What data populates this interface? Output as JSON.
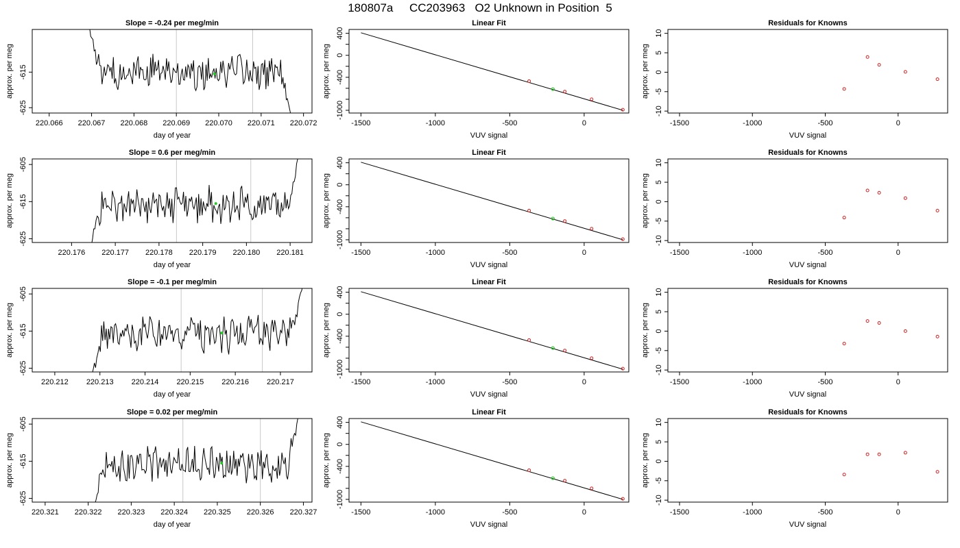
{
  "figure": {
    "title": "180807a     CC203963   O2 Unknown in Position  5"
  },
  "chart_data": [
    {
      "type": "line",
      "title": "Slope =  -0.24  per meg/min",
      "xlabel": "day of year",
      "ylabel": "approx. per meg",
      "xlim": [
        220.0656,
        220.0722
      ],
      "ylim": [
        -626.5,
        -603
      ],
      "xticks": [
        "220.066",
        "220.067",
        "220.068",
        "220.069",
        "220.070",
        "220.071",
        "220.072"
      ],
      "xtick_values": [
        220.066,
        220.067,
        220.068,
        220.069,
        220.07,
        220.071,
        220.072
      ],
      "yticks": [
        "-615",
        "-625"
      ],
      "ytick_values": [
        -615,
        -625
      ],
      "vlines": [
        220.069,
        220.0708
      ],
      "trace": {
        "start": 220.0669,
        "end": 220.0717,
        "level": -615,
        "rise_to": -600,
        "fall_to": -627
      },
      "marker": {
        "x": 220.0699,
        "y": -615.5
      }
    },
    {
      "type": "scatter",
      "title": "Linear Fit",
      "xlabel": "VUV signal",
      "ylabel": "approx. per meg",
      "xlim": [
        -1580,
        300
      ],
      "ylim": [
        -1050,
        470
      ],
      "xticks": [
        "-1500",
        "-1000",
        "-500",
        "0"
      ],
      "xtick_values": [
        -1500,
        -1000,
        -500,
        0
      ],
      "yticks": [
        "400",
        "0",
        "-400",
        "-1000"
      ],
      "ytick_values": [
        400,
        0,
        -400,
        -1000
      ],
      "fit_line": {
        "x": [
          -1500,
          260
        ],
        "y": [
          410,
          -1000
        ]
      },
      "knowns": {
        "x": [
          -370,
          -130,
          50,
          260
        ],
        "y": [
          -470,
          -660,
          -800,
          -990
        ]
      },
      "unknown": {
        "x": [
          -210
        ],
        "y": [
          -615
        ]
      }
    },
    {
      "type": "scatter",
      "title": "Residuals for Knowns",
      "xlabel": "VUV signal",
      "ylabel": "approx. per meg",
      "xlim": [
        -1580,
        340
      ],
      "ylim": [
        -10.5,
        11
      ],
      "xticks": [
        "-1500",
        "-1000",
        "-500",
        "0"
      ],
      "xtick_values": [
        -1500,
        -1000,
        -500,
        0
      ],
      "yticks": [
        "10",
        "5",
        "0",
        "-5",
        "-10"
      ],
      "ytick_values": [
        10,
        5,
        0,
        -5,
        -10
      ],
      "points": {
        "x": [
          -370,
          -210,
          -130,
          50,
          270
        ],
        "y": [
          -4.3,
          3.9,
          1.9,
          0.1,
          -1.8
        ]
      }
    },
    {
      "type": "line",
      "title": "Slope =  0.6  per meg/min",
      "xlabel": "day of year",
      "ylabel": "approx. per meg",
      "xlim": [
        220.1751,
        220.1815
      ],
      "ylim": [
        -626,
        -603.5
      ],
      "xticks": [
        "220.176",
        "220.177",
        "220.178",
        "220.179",
        "220.180",
        "220.181"
      ],
      "xtick_values": [
        220.176,
        220.177,
        220.178,
        220.179,
        220.18,
        220.181
      ],
      "yticks": [
        "-605",
        "-615",
        "-625"
      ],
      "ytick_values": [
        -605,
        -615,
        -625
      ],
      "vlines": [
        220.1784,
        220.1801
      ],
      "trace": {
        "start": 220.1764,
        "end": 220.1812,
        "level": -616,
        "rise_to": -602,
        "fall_to": -628
      },
      "marker": {
        "x": 220.1793,
        "y": -615.5
      }
    },
    {
      "type": "scatter",
      "title": "Linear Fit",
      "xlabel": "VUV signal",
      "ylabel": "approx. per meg",
      "xlim": [
        -1580,
        300
      ],
      "ylim": [
        -1050,
        470
      ],
      "xticks": [
        "-1500",
        "-1000",
        "-500",
        "0"
      ],
      "xtick_values": [
        -1500,
        -1000,
        -500,
        0
      ],
      "yticks": [
        "400",
        "0",
        "-400",
        "-1000"
      ],
      "ytick_values": [
        400,
        0,
        -400,
        -1000
      ],
      "fit_line": {
        "x": [
          -1500,
          260
        ],
        "y": [
          410,
          -1000
        ]
      },
      "knowns": {
        "x": [
          -370,
          -130,
          50,
          260
        ],
        "y": [
          -470,
          -660,
          -800,
          -990
        ]
      },
      "unknown": {
        "x": [
          -210
        ],
        "y": [
          -615
        ]
      }
    },
    {
      "type": "scatter",
      "title": "Residuals for Knowns",
      "xlabel": "VUV signal",
      "ylabel": "approx. per meg",
      "xlim": [
        -1580,
        340
      ],
      "ylim": [
        -10.5,
        11
      ],
      "xticks": [
        "-1500",
        "-1000",
        "-500",
        "0"
      ],
      "xtick_values": [
        -1500,
        -1000,
        -500,
        0
      ],
      "yticks": [
        "10",
        "5",
        "0",
        "-5",
        "-10"
      ],
      "ytick_values": [
        10,
        5,
        0,
        -5,
        -10
      ],
      "points": {
        "x": [
          -370,
          -210,
          -130,
          50,
          270
        ],
        "y": [
          -4.1,
          2.9,
          2.3,
          0.9,
          -2.3
        ]
      }
    },
    {
      "type": "line",
      "title": "Slope =  -0.1  per meg/min",
      "xlabel": "day of year",
      "ylabel": "approx. per meg",
      "xlim": [
        220.2115,
        220.2177
      ],
      "ylim": [
        -626,
        -603.5
      ],
      "xticks": [
        "220.212",
        "220.213",
        "220.214",
        "220.215",
        "220.216",
        "220.217"
      ],
      "xtick_values": [
        220.212,
        220.213,
        220.214,
        220.215,
        220.216,
        220.217
      ],
      "yticks": [
        "-605",
        "-615",
        "-625"
      ],
      "ytick_values": [
        -605,
        -615,
        -625
      ],
      "vlines": [
        220.2148,
        220.2166
      ],
      "trace": {
        "start": 220.2128,
        "end": 220.2175,
        "level": -616,
        "rise_to": -602,
        "fall_to": -628
      },
      "marker": {
        "x": 220.2157,
        "y": -615.5
      }
    },
    {
      "type": "scatter",
      "title": "Linear Fit",
      "xlabel": "VUV signal",
      "ylabel": "approx. per meg",
      "xlim": [
        -1580,
        300
      ],
      "ylim": [
        -1050,
        470
      ],
      "xticks": [
        "-1500",
        "-1000",
        "-500",
        "0"
      ],
      "xtick_values": [
        -1500,
        -1000,
        -500,
        0
      ],
      "yticks": [
        "400",
        "0",
        "-400",
        "-1000"
      ],
      "ytick_values": [
        400,
        0,
        -400,
        -1000
      ],
      "fit_line": {
        "x": [
          -1500,
          260
        ],
        "y": [
          410,
          -1000
        ]
      },
      "knowns": {
        "x": [
          -370,
          -130,
          50,
          260
        ],
        "y": [
          -470,
          -660,
          -800,
          -990
        ]
      },
      "unknown": {
        "x": [
          -210
        ],
        "y": [
          -615
        ]
      }
    },
    {
      "type": "scatter",
      "title": "Residuals for Knowns",
      "xlabel": "VUV signal",
      "ylabel": "approx. per meg",
      "xlim": [
        -1580,
        340
      ],
      "ylim": [
        -10.5,
        11
      ],
      "xticks": [
        "-1500",
        "-1000",
        "-500",
        "0"
      ],
      "xtick_values": [
        -1500,
        -1000,
        -500,
        0
      ],
      "yticks": [
        "10",
        "5",
        "0",
        "-5",
        "-10"
      ],
      "points": {
        "x": [
          -370,
          -210,
          -130,
          50,
          270
        ],
        "y": [
          -3.2,
          2.6,
          2.1,
          0.0,
          -1.4
        ]
      },
      "ytick_values": [
        10,
        5,
        0,
        -5,
        -10
      ]
    },
    {
      "type": "line",
      "title": "Slope =  0.02  per meg/min",
      "xlabel": "day of year",
      "ylabel": "approx. per meg",
      "xlim": [
        220.3207,
        220.3272
      ],
      "ylim": [
        -626,
        -603.5
      ],
      "xticks": [
        "220.321",
        "220.322",
        "220.323",
        "220.324",
        "220.325",
        "220.326",
        "220.327"
      ],
      "xtick_values": [
        220.321,
        220.322,
        220.323,
        220.324,
        220.325,
        220.326,
        220.327
      ],
      "yticks": [
        "-605",
        "-615",
        "-625"
      ],
      "ytick_values": [
        -605,
        -615,
        -625
      ],
      "vlines": [
        220.3242,
        220.326
      ],
      "trace": {
        "start": 220.3221,
        "end": 220.3269,
        "level": -616,
        "rise_to": -602,
        "fall_to": -628
      },
      "marker": {
        "x": 220.3251,
        "y": -615.5
      }
    },
    {
      "type": "scatter",
      "title": "Linear Fit",
      "xlabel": "VUV signal",
      "ylabel": "approx. per meg",
      "xlim": [
        -1580,
        300
      ],
      "ylim": [
        -1050,
        470
      ],
      "xticks": [
        "-1500",
        "-1000",
        "-500",
        "0"
      ],
      "xtick_values": [
        -1500,
        -1000,
        -500,
        0
      ],
      "yticks": [
        "400",
        "0",
        "-400",
        "-1000"
      ],
      "ytick_values": [
        400,
        0,
        -400,
        -1000
      ],
      "fit_line": {
        "x": [
          -1500,
          260
        ],
        "y": [
          410,
          -1000
        ]
      },
      "knowns": {
        "x": [
          -370,
          -130,
          50,
          260
        ],
        "y": [
          -470,
          -660,
          -800,
          -990
        ]
      },
      "unknown": {
        "x": [
          -210
        ],
        "y": [
          -615
        ]
      }
    },
    {
      "type": "scatter",
      "title": "Residuals for Knowns",
      "xlabel": "VUV signal",
      "ylabel": "approx. per meg",
      "xlim": [
        -1580,
        340
      ],
      "ylim": [
        -10.5,
        11
      ],
      "xticks": [
        "-1500",
        "-1000",
        "-500",
        "0"
      ],
      "xtick_values": [
        -1500,
        -1000,
        -500,
        0
      ],
      "yticks": [
        "10",
        "5",
        "0",
        "-5",
        "-10"
      ],
      "ytick_values": [
        10,
        5,
        0,
        -5,
        -10
      ],
      "points": {
        "x": [
          -370,
          -210,
          -130,
          50,
          270
        ],
        "y": [
          -3.4,
          1.8,
          1.8,
          2.2,
          -2.7
        ]
      }
    }
  ],
  "colors": {
    "trace": "#000000",
    "vline": "#c8c8c8",
    "unknown": "#22cc22",
    "known": "#cc2222",
    "axis": "#000000"
  }
}
